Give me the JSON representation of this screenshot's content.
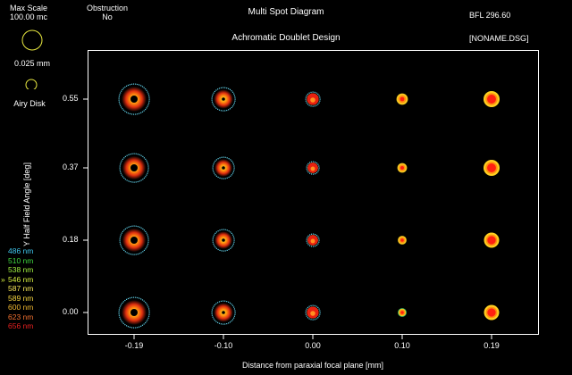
{
  "header": {
    "max_scale_label": "Max Scale",
    "max_scale_value": "100.00 mc",
    "obstruction_label": "Obstruction",
    "obstruction_value": "No",
    "title": "Multi Spot Diagram",
    "subtitle": "Achromatic Doublet Design",
    "bfl": "BFL 296.60",
    "file": "[NONAME.DSG]"
  },
  "legend": {
    "scale_circle_label": "0.025 mm",
    "airy_label": "Airy Disk",
    "scale_color": "#e8e840"
  },
  "wavelengths": [
    {
      "label": "486 nm",
      "color": "#40c8f0",
      "marker": ""
    },
    {
      "label": "510 nm",
      "color": "#40d840",
      "marker": ""
    },
    {
      "label": "538 nm",
      "color": "#a0f040",
      "marker": ""
    },
    {
      "label": "546 nm",
      "color": "#d8f040",
      "marker": "»"
    },
    {
      "label": "587 nm",
      "color": "#f8e858",
      "marker": ""
    },
    {
      "label": "589 nm",
      "color": "#f8d840",
      "marker": ""
    },
    {
      "label": "600 nm",
      "color": "#f0b830",
      "marker": ""
    },
    {
      "label": "623 nm",
      "color": "#f07030",
      "marker": ""
    },
    {
      "label": "656 nm",
      "color": "#e82020",
      "marker": ""
    }
  ],
  "chart_data": {
    "type": "spot-grid",
    "xlabel": "Distance from paraxial focal plane [mm]",
    "ylabel": "Y Half Field Angle [deg]",
    "x_ticks": [
      "-0.19",
      "-0.10",
      "0.00",
      "0.10",
      "0.19"
    ],
    "y_ticks": [
      "0.55",
      "0.37",
      "0.18",
      "0.00"
    ],
    "spot_size_rel": [
      [
        17,
        13,
        8,
        6,
        9
      ],
      [
        16,
        12,
        7,
        5,
        9
      ],
      [
        16,
        12,
        7,
        4.5,
        8.5
      ],
      [
        17,
        13,
        8,
        4.5,
        8.5
      ]
    ]
  }
}
